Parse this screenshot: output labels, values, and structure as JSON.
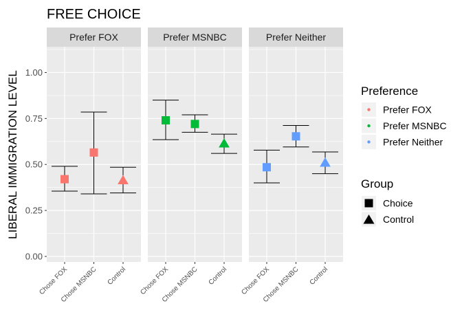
{
  "chart_data": {
    "type": "scatter",
    "title": "FREE CHOICE",
    "xlabel": "",
    "ylabel": "LIBERAL IMMIGRATION LEVEL",
    "ylim": [
      -0.03,
      1.14
    ],
    "yticks": [
      "0.00",
      "0.25",
      "0.50",
      "0.75",
      "1.00"
    ],
    "grid": true,
    "legend_position": "right",
    "categories": [
      "Chose FOX",
      "Chose MSNBC",
      "Control"
    ],
    "panels": [
      {
        "strip_label": "Prefer FOX",
        "preference": "Prefer FOX",
        "points": [
          {
            "x": "Chose FOX",
            "y": 0.42,
            "lower": 0.355,
            "upper": 0.49,
            "group": "Choice"
          },
          {
            "x": "Chose MSNBC",
            "y": 0.565,
            "lower": 0.34,
            "upper": 0.785,
            "group": "Choice"
          },
          {
            "x": "Control",
            "y": 0.415,
            "lower": 0.345,
            "upper": 0.485,
            "group": "Control"
          }
        ]
      },
      {
        "strip_label": "Prefer MSNBC",
        "preference": "Prefer MSNBC",
        "points": [
          {
            "x": "Chose FOX",
            "y": 0.74,
            "lower": 0.635,
            "upper": 0.85,
            "group": "Choice"
          },
          {
            "x": "Chose MSNBC",
            "y": 0.72,
            "lower": 0.675,
            "upper": 0.77,
            "group": "Choice"
          },
          {
            "x": "Control",
            "y": 0.615,
            "lower": 0.56,
            "upper": 0.665,
            "group": "Control"
          }
        ]
      },
      {
        "strip_label": "Prefer Neither",
        "preference": "Prefer Neither",
        "points": [
          {
            "x": "Chose FOX",
            "y": 0.485,
            "lower": 0.4,
            "upper": 0.578,
            "group": "Choice"
          },
          {
            "x": "Chose MSNBC",
            "y": 0.653,
            "lower": 0.595,
            "upper": 0.712,
            "group": "Choice"
          },
          {
            "x": "Control",
            "y": 0.51,
            "lower": 0.45,
            "upper": 0.568,
            "group": "Control"
          }
        ]
      }
    ],
    "legend": {
      "color_title": "Preference",
      "color_entries": [
        {
          "label": "Prefer FOX",
          "color": "#F8766D"
        },
        {
          "label": "Prefer MSNBC",
          "color": "#00BA38"
        },
        {
          "label": "Prefer Neither",
          "color": "#619CFF"
        }
      ],
      "shape_title": "Group",
      "shape_entries": [
        {
          "label": "Choice",
          "shape": "square"
        },
        {
          "label": "Control",
          "shape": "triangle"
        }
      ]
    },
    "colors": {
      "panel_background": "#EBEBEB",
      "strip_background": "#D9D9D9",
      "grid": "#FFFFFF",
      "errorbar": "#000000"
    }
  }
}
